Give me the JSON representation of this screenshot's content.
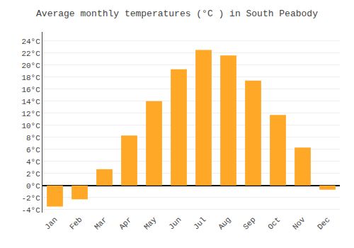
{
  "chart_data": {
    "type": "bar",
    "title": "Average monthly temperatures (°C ) in South Peabody",
    "categories": [
      "Jan",
      "Feb",
      "Mar",
      "Apr",
      "May",
      "Jun",
      "Jul",
      "Aug",
      "Sep",
      "Oct",
      "Nov",
      "Dec"
    ],
    "values": [
      -3.5,
      -2.3,
      2.7,
      8.3,
      14.0,
      19.3,
      22.5,
      21.6,
      17.4,
      11.7,
      6.3,
      -0.7
    ],
    "color": "#FFA726",
    "ylim": [
      -4.5,
      25.5
    ],
    "yticks": [
      {
        "value": -4,
        "label": "-4°C"
      },
      {
        "value": -2,
        "label": "-2°C"
      },
      {
        "value": 0,
        "label": "0°C"
      },
      {
        "value": 2,
        "label": "2°C"
      },
      {
        "value": 4,
        "label": "4°C"
      },
      {
        "value": 6,
        "label": "6°C"
      },
      {
        "value": 8,
        "label": "8°C"
      },
      {
        "value": 10,
        "label": "10°C"
      },
      {
        "value": 12,
        "label": "12°C"
      },
      {
        "value": 14,
        "label": "14°C"
      },
      {
        "value": 16,
        "label": "16°C"
      },
      {
        "value": 18,
        "label": "18°C"
      },
      {
        "value": 20,
        "label": "20°C"
      },
      {
        "value": 22,
        "label": "22°C"
      },
      {
        "value": 24,
        "label": "24°C"
      }
    ],
    "grid": true
  }
}
